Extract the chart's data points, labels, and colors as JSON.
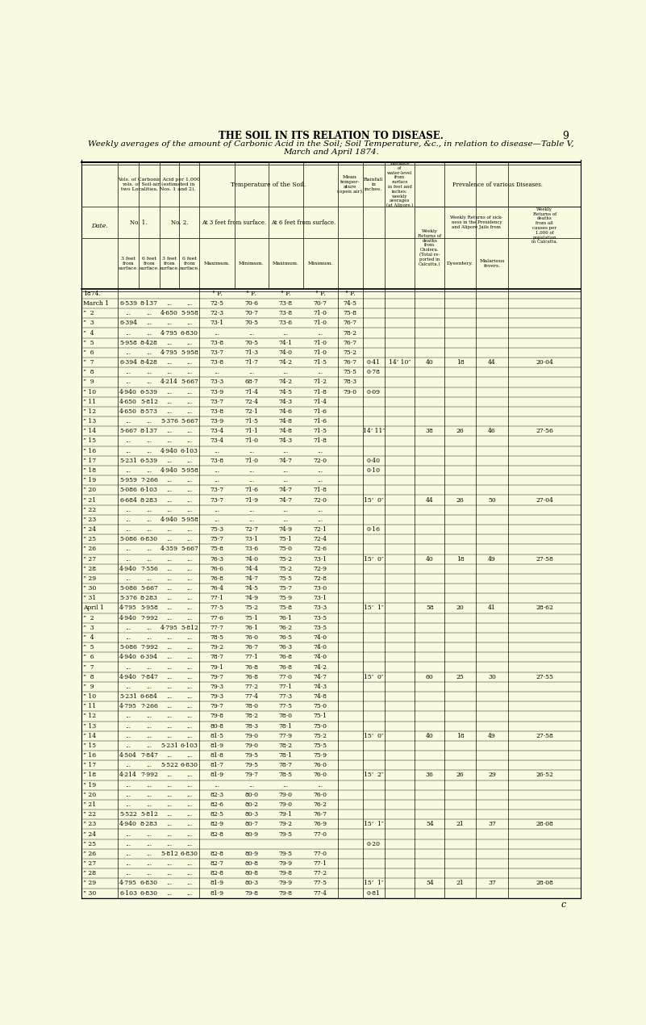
{
  "title_line1": "THE SOIL IN ITS RELATION TO DISEASE.",
  "title_page": "9",
  "subtitle": "Weekly averages of the amount of Carbonic Acid in the Soil; Soil Temperature, &c., in relation to disease—Table V,",
  "subtitle2": "March and April 1874.",
  "bg_color": "#FAFAE0",
  "rows": [
    [
      "1874.",
      "",
      "",
      "",
      "",
      "° F.",
      "° F.",
      "° F.",
      "° F.",
      "° F.",
      "",
      "",
      "",
      "",
      "",
      ""
    ],
    [
      "March 1",
      "6·539",
      "8·137",
      "...",
      "...",
      "72·5",
      "70·6",
      "73·8",
      "70·7",
      "74·5",
      "",
      "",
      "",
      "",
      "",
      ""
    ],
    [
      "”  2",
      "...",
      "...",
      "4·650",
      "5·958",
      "72·3",
      "70·7",
      "73·8",
      "71·0",
      "75·8",
      "",
      "",
      "",
      "",
      "",
      ""
    ],
    [
      "”  3",
      "6·394",
      "...",
      "...",
      "...",
      "73·1",
      "70·5",
      "73·6",
      "71·0",
      "76·7",
      "",
      "",
      "",
      "",
      "",
      ""
    ],
    [
      "”  4",
      "...",
      "...",
      "4·795",
      "6·830",
      "...",
      "...",
      "...",
      "...",
      "78·2",
      "",
      "",
      "",
      "",
      "",
      ""
    ],
    [
      "”  5",
      "5·958",
      "8·428",
      "...",
      "...",
      "73·8",
      "70·5",
      "74·1",
      "71·0",
      "76·7",
      "",
      "",
      "",
      "",
      "",
      ""
    ],
    [
      "”  6",
      "...",
      "...",
      "4·795",
      "5·958",
      "73·7",
      "71·3",
      "74·0",
      "71·0",
      "75·2",
      "",
      "",
      "",
      "",
      "",
      ""
    ],
    [
      "”  7",
      "6·394",
      "8·428",
      "...",
      "...",
      "73·8",
      "71·7",
      "74·2",
      "71·5",
      "76·7",
      "0·41",
      "14’ 10″",
      "40",
      "18",
      "44",
      "20·04"
    ],
    [
      "”  8",
      "...",
      "...",
      "...",
      "...",
      "...",
      "...",
      "...",
      "...",
      "75·5",
      "0·78",
      "",
      "",
      "",
      "",
      ""
    ],
    [
      "”  9",
      "...",
      "...",
      "4·214",
      "5·667",
      "73·3",
      "68·7",
      "74·2",
      "71·2",
      "78·3",
      "",
      "",
      "",
      "",
      "",
      ""
    ],
    [
      "” 10",
      "4·940",
      "6·539",
      "...",
      "...",
      "73·9",
      "71·4",
      "74·5",
      "71·8",
      "79·0",
      "0·09",
      "",
      "",
      "",
      "",
      ""
    ],
    [
      "” 11",
      "4·650",
      "5·812",
      "...",
      "...",
      "73·7",
      "72·4",
      "74·3",
      "71·4",
      "",
      "",
      "",
      "",
      "",
      "",
      ""
    ],
    [
      "” 12",
      "4·650",
      "8·573",
      "...",
      "...",
      "73·8",
      "72·1",
      "74·6",
      "71·6",
      "",
      "",
      "",
      "",
      "",
      "",
      ""
    ],
    [
      "” 13",
      "...",
      "...",
      "5·376",
      "5·667",
      "73·9",
      "71·5",
      "74·8",
      "71·6",
      "",
      "",
      "",
      "",
      "",
      "",
      ""
    ],
    [
      "” 14",
      "5·667",
      "8·137",
      "...",
      "...",
      "73·4",
      "71·1",
      "74·8",
      "71·5",
      "",
      "14’ 11″",
      "",
      "38",
      "26",
      "46",
      "27·56"
    ],
    [
      "” 15",
      "...",
      "...",
      "...",
      "...",
      "73·4",
      "71·0",
      "74·3",
      "71·8",
      "",
      "",
      "",
      "",
      "",
      "",
      ""
    ],
    [
      "” 16",
      "...",
      "...",
      "4·940",
      "6·103",
      "...",
      "...",
      "...",
      "...",
      "",
      "",
      "",
      "",
      "",
      "",
      ""
    ],
    [
      "” 17",
      "5·231",
      "6·539",
      "...",
      "...",
      "73·8",
      "71·0",
      "74·7",
      "72·0",
      "",
      "0·40",
      "",
      "",
      "",
      "",
      ""
    ],
    [
      "” 18",
      "...",
      "...",
      "4·940",
      "5·958",
      "...",
      "...",
      "...",
      "...",
      "",
      "0·10",
      "",
      "",
      "",
      "",
      ""
    ],
    [
      "” 19",
      "5·959",
      "7·266",
      "...",
      "...",
      "...",
      "...",
      "...",
      "...",
      "",
      "",
      "",
      "",
      "",
      "",
      ""
    ],
    [
      "” 20",
      "5·086",
      "6·103",
      "...",
      "...",
      "73·7",
      "71·6",
      "74·7",
      "71·8",
      "",
      "",
      "",
      "",
      "",
      "",
      ""
    ],
    [
      "” 21",
      "6·684",
      "8·283",
      "...",
      "...",
      "73·7",
      "71·9",
      "74·7",
      "72·0",
      "",
      "15’  0″",
      "",
      "44",
      "26",
      "50",
      "27·04"
    ],
    [
      "” 22",
      "...",
      "...",
      "...",
      "...",
      "...",
      "...",
      "...",
      "...",
      "",
      "",
      "",
      "",
      "",
      "",
      ""
    ],
    [
      "” 23",
      "...",
      "...",
      "4·940",
      "5·958",
      "...",
      "...",
      "...",
      "...",
      "",
      "",
      "",
      "",
      "",
      "",
      ""
    ],
    [
      "” 24",
      "...",
      "...",
      "...",
      "...",
      "75·3",
      "72·7",
      "74·9",
      "72·1",
      "",
      "0·16",
      "",
      "",
      "",
      "",
      ""
    ],
    [
      "” 25",
      "5·086",
      "6·830",
      "...",
      "...",
      "75·7",
      "73·1",
      "75·1",
      "72·4",
      "",
      "",
      "",
      "",
      "",
      "",
      ""
    ],
    [
      "” 26",
      "...",
      "...",
      "4·359",
      "5·667",
      "75·8",
      "73·6",
      "75·0",
      "72·6",
      "",
      "",
      "",
      "",
      "",
      "",
      ""
    ],
    [
      "” 27",
      "...",
      "...",
      "...",
      "...",
      "76·3",
      "74·0",
      "75·2",
      "73·1",
      "",
      "15’  0″",
      "",
      "40",
      "18",
      "49",
      "27·58"
    ],
    [
      "” 28",
      "4·940",
      "7·556",
      "...",
      "...",
      "76·6",
      "74·4",
      "75·2",
      "72·9",
      "",
      "",
      "",
      "",
      "",
      "",
      ""
    ],
    [
      "” 29",
      "...",
      "...",
      "...",
      "...",
      "76·8",
      "74·7",
      "75·5",
      "72·8",
      "",
      "",
      "",
      "",
      "",
      "",
      ""
    ],
    [
      "” 30",
      "5·086",
      "5·667",
      "...",
      "...",
      "76·4",
      "74·5",
      "75·7",
      "73·0",
      "",
      "",
      "",
      "",
      "",
      "",
      ""
    ],
    [
      "” 31",
      "5·376",
      "8·283",
      "...",
      "...",
      "77·1",
      "74·9",
      "75·9",
      "73·1",
      "",
      "",
      "",
      "",
      "",
      "",
      ""
    ],
    [
      "April 1",
      "4·795",
      "5·958",
      "...",
      "...",
      "77·5",
      "75·2",
      "75·8",
      "73·3",
      "",
      "15’  1″",
      "",
      "58",
      "20",
      "41",
      "28·62"
    ],
    [
      "”  2",
      "4·940",
      "7·992",
      "...",
      "...",
      "77·6",
      "75·1",
      "76·1",
      "73·5",
      "",
      "",
      "",
      "",
      "",
      "",
      ""
    ],
    [
      "”  3",
      "...",
      "...",
      "4·795",
      "5·812",
      "77·7",
      "76·1",
      "76·2",
      "73·5",
      "",
      "",
      "",
      "",
      "",
      "",
      ""
    ],
    [
      "”  4",
      "...",
      "...",
      "...",
      "...",
      "78·5",
      "76·0",
      "76·5",
      "74·0",
      "",
      "",
      "",
      "",
      "",
      "",
      ""
    ],
    [
      "”  5",
      "5·086",
      "7·992",
      "...",
      "...",
      "79·2",
      "76·7",
      "76·3",
      "74·0",
      "",
      "",
      "",
      "",
      "",
      "",
      ""
    ],
    [
      "”  6",
      "4·940",
      "6·394",
      "...",
      "...",
      "78·7",
      "77·1",
      "76·8",
      "74·0",
      "",
      "",
      "",
      "",
      "",
      "",
      ""
    ],
    [
      "”  7",
      "...",
      "...",
      "...",
      "...",
      "79·1",
      "76·8",
      "76·8",
      "74·2",
      "",
      "",
      "",
      "",
      "",
      "",
      ""
    ],
    [
      "”  8",
      "4·940",
      "7·847",
      "...",
      "...",
      "79·7",
      "76·8",
      "77·0",
      "74·7",
      "",
      "15’  0″",
      "",
      "60",
      "25",
      "30",
      "27·55"
    ],
    [
      "”  9",
      "...",
      "...",
      "...",
      "...",
      "79·3",
      "77·2",
      "77·1",
      "74·3",
      "",
      "",
      "",
      "",
      "",
      "",
      ""
    ],
    [
      "” 10",
      "5·231",
      "6·684",
      "...",
      "...",
      "79·3",
      "77·4",
      "77·3",
      "74·8",
      "",
      "",
      "",
      "",
      "",
      "",
      ""
    ],
    [
      "” 11",
      "4·795",
      "7·266",
      "...",
      "...",
      "79·7",
      "78·0",
      "77·5",
      "75·0",
      "",
      "",
      "",
      "",
      "",
      "",
      ""
    ],
    [
      "” 12",
      "...",
      "...",
      "...",
      "...",
      "79·8",
      "78·2",
      "78·0",
      "75·1",
      "",
      "",
      "",
      "",
      "",
      "",
      ""
    ],
    [
      "” 13",
      "...",
      "...",
      "...",
      "...",
      "80·8",
      "78·3",
      "78·1",
      "75·0",
      "",
      "",
      "",
      "",
      "",
      "",
      ""
    ],
    [
      "” 14",
      "...",
      "...",
      "...",
      "...",
      "81·5",
      "79·0",
      "77·9",
      "75·2",
      "",
      "15’  0″",
      "",
      "40",
      "18",
      "49",
      "27·58"
    ],
    [
      "” 15",
      "...",
      "...",
      "5·231",
      "6·103",
      "81·9",
      "79·0",
      "78·2",
      "75·5",
      "",
      "",
      "",
      "",
      "",
      "",
      ""
    ],
    [
      "” 16",
      "4·504",
      "7·847",
      "...",
      "...",
      "81·8",
      "79·5",
      "78·1",
      "75·9",
      "",
      "",
      "",
      "",
      "",
      "",
      ""
    ],
    [
      "” 17",
      "...",
      "...",
      "5·522",
      "6·830",
      "81·7",
      "79·5",
      "78·7",
      "76·0",
      "",
      "",
      "",
      "",
      "",
      "",
      ""
    ],
    [
      "” 18",
      "4·214",
      "7·992",
      "...",
      "...",
      "81·9",
      "79·7",
      "78·5",
      "76·0",
      "",
      "15’  2″",
      "",
      "36",
      "26",
      "29",
      "26·52"
    ],
    [
      "” 19",
      "...",
      "...",
      "...",
      "...",
      "...",
      "...",
      "...",
      "...",
      "",
      "",
      "",
      "",
      "",
      "",
      ""
    ],
    [
      "” 20",
      "...",
      "...",
      "...",
      "...",
      "82·3",
      "80·0",
      "79·0",
      "76·0",
      "",
      "",
      "",
      "",
      "",
      "",
      ""
    ],
    [
      "” 21",
      "...",
      "...",
      "...",
      "...",
      "82·6",
      "80·2",
      "79·0",
      "76·2",
      "",
      "",
      "",
      "",
      "",
      "",
      ""
    ],
    [
      "” 22",
      "5·522",
      "5·812",
      "...",
      "...",
      "82·5",
      "80·3",
      "79·1",
      "76·7",
      "",
      "",
      "",
      "",
      "",
      "",
      ""
    ],
    [
      "” 23",
      "4·940",
      "8·283",
      "...",
      "...",
      "82·9",
      "80·7",
      "79·2",
      "76·9",
      "",
      "15’  1″",
      "",
      "54",
      "21",
      "37",
      "28·08"
    ],
    [
      "” 24",
      "...",
      "...",
      "...",
      "...",
      "82·8",
      "80·9",
      "79·5",
      "77·0",
      "",
      "",
      "",
      "",
      "",
      "",
      ""
    ],
    [
      "” 25",
      "...",
      "...",
      "...",
      "...",
      "",
      "",
      "",
      "",
      "",
      "0·20",
      "",
      "",
      "",
      "",
      ""
    ],
    [
      "” 26",
      "...",
      "...",
      "5·812",
      "6·830",
      "82·8",
      "80·9",
      "79·5",
      "77·0",
      "",
      "",
      "",
      "",
      "",
      "",
      ""
    ],
    [
      "” 27",
      "...",
      "...",
      "...",
      "...",
      "82·7",
      "80·8",
      "79·9",
      "77·1",
      "",
      "",
      "",
      "",
      "",
      "",
      ""
    ],
    [
      "” 28",
      "...",
      "...",
      "...",
      "...",
      "82·8",
      "80·8",
      "79·8",
      "77·2",
      "",
      "",
      "",
      "",
      "",
      "",
      ""
    ],
    [
      "” 29",
      "4·795",
      "6·830",
      "...",
      "...",
      "81·9",
      "80·3",
      "79·9",
      "77·5",
      "",
      "15’  1″",
      "",
      "54",
      "21",
      "37",
      "28·08"
    ],
    [
      "” 30",
      "6·103",
      "6·830",
      "...",
      "...",
      "81·9",
      "79·8",
      "79·8",
      "77·4",
      "",
      "0·81",
      "",
      "",
      "",
      "",
      ""
    ]
  ]
}
